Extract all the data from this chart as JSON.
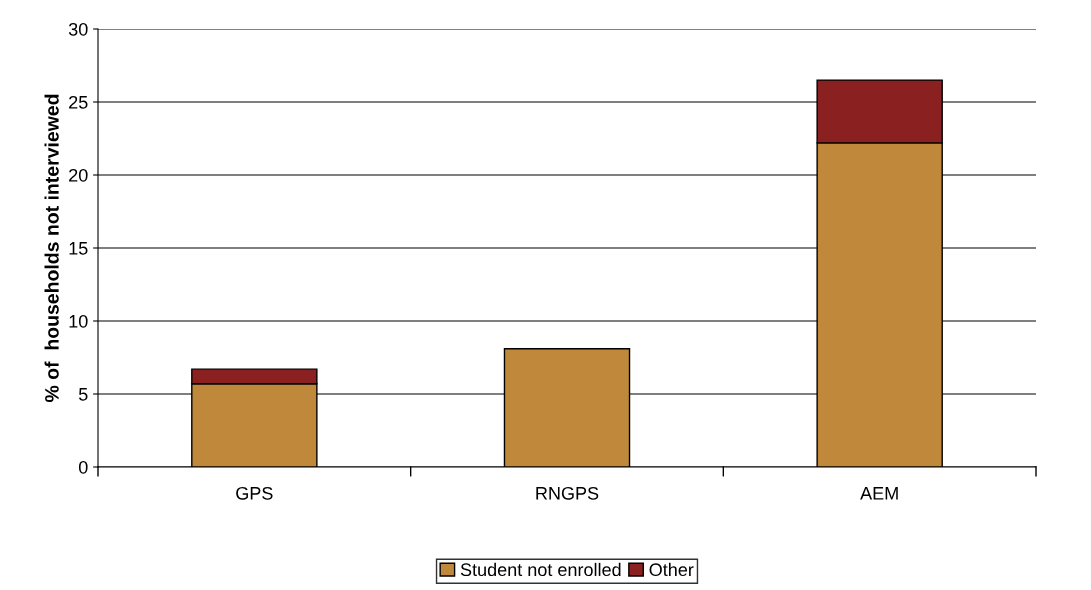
{
  "chart_data": {
    "type": "bar",
    "stacked": true,
    "ylabel": "% of  households not interviewed",
    "categories": [
      "GPS",
      "RNGPS",
      "AEM"
    ],
    "series": [
      {
        "name": "Student not enrolled",
        "color": "#c0883a",
        "values": [
          5.7,
          8.1,
          22.2
        ]
      },
      {
        "name": "Other",
        "color": "#8b2020",
        "values": [
          1.0,
          null,
          4.3
        ]
      }
    ],
    "ylim": [
      0,
      30
    ],
    "yticks": [
      0,
      5,
      10,
      15,
      20,
      25,
      30
    ],
    "grid": "y",
    "legend": "bottom"
  }
}
